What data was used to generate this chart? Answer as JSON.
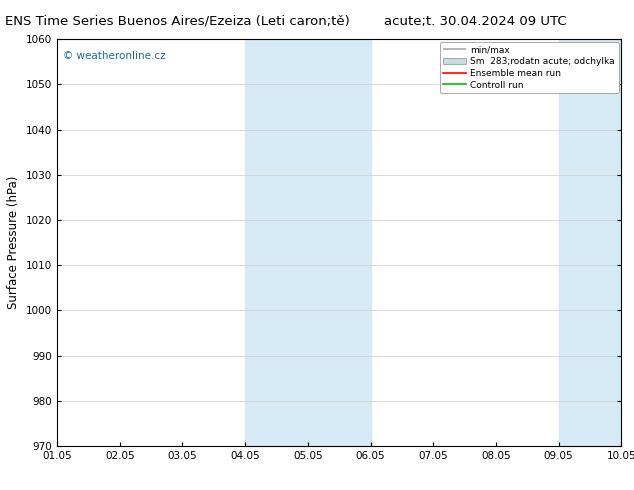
{
  "title": "ENS Time Series Buenos Aires/Ezeiza (Leti caron;tě)",
  "title_right": "acute;t. 30.04.2024 09 UTC",
  "ylabel": "Surface Pressure (hPa)",
  "xlabel_ticks": [
    "01.05",
    "02.05",
    "03.05",
    "04.05",
    "05.05",
    "06.05",
    "07.05",
    "08.05",
    "09.05",
    "10.05"
  ],
  "ylim": [
    970,
    1060
  ],
  "yticks": [
    970,
    980,
    990,
    1000,
    1010,
    1020,
    1030,
    1040,
    1050,
    1060
  ],
  "background_color": "#ffffff",
  "plot_background": "#ffffff",
  "shaded_bands": [
    {
      "xmin": 3.0,
      "xmax": 5.0,
      "color": "#d6eaf5"
    },
    {
      "xmin": 8.0,
      "xmax": 10.0,
      "color": "#d6eaf5"
    }
  ],
  "watermark": "© weatheronline.cz",
  "legend_labels": [
    "min/max",
    "Sm  283;rodatn acute; odchylka",
    "Ensemble mean run",
    "Controll run"
  ],
  "legend_colors": [
    "#aaaaaa",
    "#c8dce8",
    "#ff0000",
    "#00bb00"
  ],
  "title_fontsize": 9.5,
  "tick_fontsize": 7.5,
  "ylabel_fontsize": 8.5,
  "watermark_color": "#1a6aab"
}
